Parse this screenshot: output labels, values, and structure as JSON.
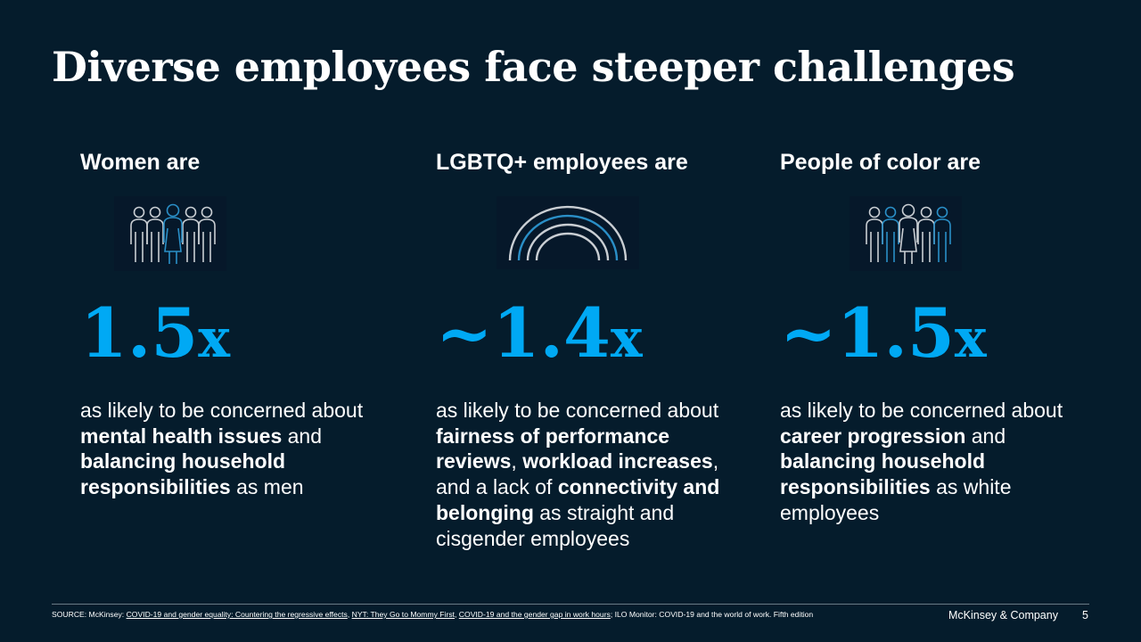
{
  "title": "Diverse employees face steeper challenges",
  "columns": [
    {
      "heading": "Women are",
      "icon": "group-of-people-icon",
      "stat_value": "1.5",
      "stat_unit": "x",
      "desc_parts": [
        {
          "text": "as likely to be concerned about ",
          "bold": false
        },
        {
          "text": "mental health issues",
          "bold": true
        },
        {
          "text": " and ",
          "bold": false
        },
        {
          "text": "balancing household responsibilities",
          "bold": true
        },
        {
          "text": " as men",
          "bold": false
        }
      ]
    },
    {
      "heading": "LGBTQ+ employees are",
      "icon": "rainbow-arcs-icon",
      "stat_value": "~1.4",
      "stat_unit": "x",
      "desc_parts": [
        {
          "text": "as likely to be concerned about ",
          "bold": false
        },
        {
          "text": "fairness of performance reviews",
          "bold": true
        },
        {
          "text": ", ",
          "bold": false
        },
        {
          "text": "workload increases",
          "bold": true
        },
        {
          "text": ", and a lack of ",
          "bold": false
        },
        {
          "text": "connectivity and belonging",
          "bold": true
        },
        {
          "text": " as straight and cisgender employees",
          "bold": false
        }
      ]
    },
    {
      "heading": "People of color are",
      "icon": "group-of-people-icon",
      "stat_value": "~1.5",
      "stat_unit": "x",
      "desc_parts": [
        {
          "text": "as likely to be concerned about ",
          "bold": false
        },
        {
          "text": "career progression",
          "bold": true
        },
        {
          "text": " and ",
          "bold": false
        },
        {
          "text": "balancing household responsibilities",
          "bold": true
        },
        {
          "text": " as white employees",
          "bold": false
        }
      ]
    }
  ],
  "footer": {
    "source_prefix": "SOURCE: McKinsey: ",
    "link1": "COVID-19 and gender equality: Countering the regressive effects",
    "sep1": ",  ",
    "link2": "NYT: They Go to Mommy First",
    "sep2": ", ",
    "link3": "COVID-19 and the gender gap in work hours",
    "source_suffix": "; ILO Monitor: COVID-19 and the world of work. Fifth edition",
    "brand": "McKinsey & Company",
    "page_number": "5"
  },
  "colors": {
    "background": "#051c2c",
    "accent": "#00a9f4",
    "icon_gray": "#c9ced3",
    "icon_blue": "#2a8fc7"
  }
}
